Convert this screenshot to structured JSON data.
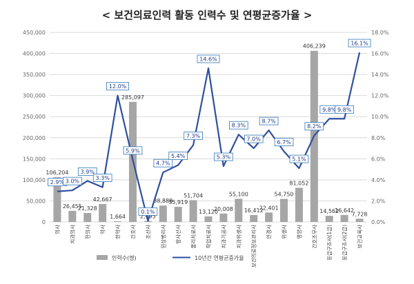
{
  "chart_data": {
    "type": "bar+line",
    "title": "< 보건의료인력 활동 인력수 및 연평균증가율 >",
    "categories": [
      "의사",
      "치과의사",
      "한의사",
      "약사",
      "한약사",
      "간호사",
      "조산사",
      "임상병리사",
      "방사선사",
      "물리치료사",
      "작업치료사",
      "치과기공사",
      "치과위생사",
      "보건의료정보관리사",
      "안경사",
      "위생사",
      "영양사",
      "간호조무사",
      "응급구조사(1급)",
      "응급구조사(2급)",
      "보건교육사"
    ],
    "series": [
      {
        "name": "인력수(명)",
        "type": "bar",
        "axis": "left",
        "values": [
          106204,
          26455,
          21328,
          42667,
          1664,
          285097,
          2495,
          38888,
          35919,
          51704,
          13120,
          20008,
          55100,
          16412,
          22401,
          54750,
          81052,
          406239,
          14562,
          16642,
          7728
        ],
        "labels": [
          "106,204",
          "26,455",
          "21,328",
          "42,667",
          "1,664",
          "285,097",
          "2,495",
          "38,888",
          "35,919",
          "51,704",
          "13,120",
          "20,008",
          "55,100",
          "16,412",
          "22,401",
          "54,750",
          "81,052",
          "406,239",
          "14,562",
          "16,642",
          "7,728"
        ]
      },
      {
        "name": "10년간 연평균증가율",
        "type": "line",
        "axis": "right",
        "values": [
          2.9,
          3.0,
          3.9,
          3.3,
          12.0,
          5.9,
          0.1,
          4.7,
          5.4,
          7.3,
          14.6,
          5.3,
          8.3,
          7.0,
          8.7,
          6.7,
          5.1,
          8.2,
          9.8,
          9.8,
          16.1
        ],
        "labels": [
          "2.9%",
          "3.0%",
          "3.9%",
          "3.3%",
          "12.0%",
          "5.9%",
          "0.1%",
          "4.7%",
          "5.4%",
          "7.3%",
          "14.6%",
          "5.3%",
          "8.3%",
          "7.0%",
          "8.7%",
          "6.7%",
          "5.1%",
          "8.2%",
          "9.8%",
          "9.8%",
          "16.1%"
        ]
      }
    ],
    "yleft_lim": [
      0,
      450000
    ],
    "yleft_ticks": [
      "0",
      "50,000",
      "100,000",
      "150,000",
      "200,000",
      "250,000",
      "300,000",
      "350,000",
      "400,000",
      "450,000"
    ],
    "yright_lim": [
      0,
      18
    ],
    "yright_ticks": [
      "0.0%",
      "2.0%",
      "4.0%",
      "6.0%",
      "8.0%",
      "10.0%",
      "12.0%",
      "14.0%",
      "16.0%",
      "18.0%"
    ],
    "grid": true,
    "legend_position": "bottom",
    "colors": {
      "bar": "#a6a6a6",
      "line": "#2e4f9e",
      "label_border": "#2e75b6",
      "grid": "#d9d9d9"
    }
  }
}
